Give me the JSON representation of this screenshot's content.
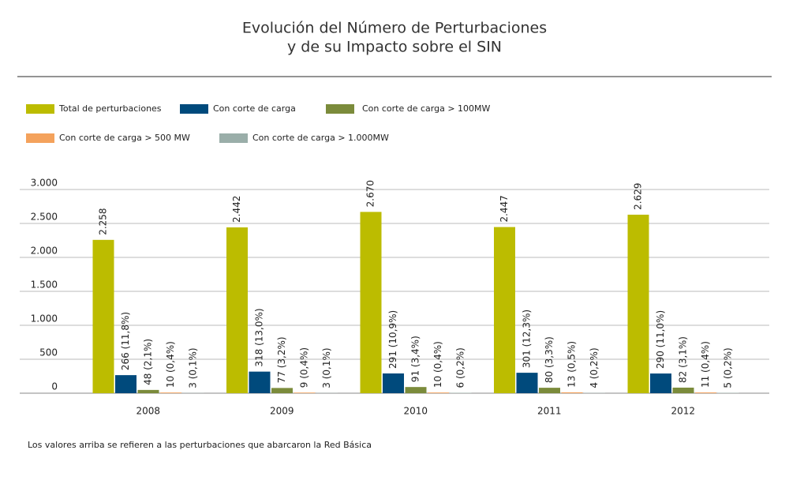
{
  "chart_data": {
    "type": "bar",
    "title": [
      "Evolución del Número de Perturbaciones",
      "y de su Impacto sobre el SIN"
    ],
    "categories": [
      "2008",
      "2009",
      "2010",
      "2011",
      "2012"
    ],
    "series": [
      {
        "name": "Total de perturbaciones",
        "color": "#bcbc00",
        "values": [
          2258,
          2442,
          2670,
          2447,
          2629
        ],
        "value_labels": [
          "2.258",
          "2.442",
          "2.670",
          "2.447",
          "2.629"
        ]
      },
      {
        "name": "Con corte de carga",
        "color": "#004a7c",
        "values": [
          266,
          318,
          291,
          301,
          290
        ],
        "value_labels": [
          "266 (11,8%)",
          "318 (13,0%)",
          "291 (10,9%)",
          "301 (12,3%)",
          "290 (11,0%)"
        ]
      },
      {
        "name": "Con corte de carga > 100MW",
        "color": "#7b8b3b",
        "values": [
          48,
          77,
          91,
          80,
          82
        ],
        "value_labels": [
          "48 (2,1%)",
          "77 (3,2%)",
          "91 (3,4%)",
          "80 (3,3%)",
          "82 (3,1%)"
        ]
      },
      {
        "name": "Con corte de carga > 500 MW",
        "color": "#f4a25c",
        "values": [
          10,
          9,
          10,
          13,
          11
        ],
        "value_labels": [
          "10 (0,4%)",
          "9 (0,4%)",
          "10 (0,4%)",
          "13 (0,5%)",
          "11 (0,4%)"
        ]
      },
      {
        "name": "Con corte de carga > 1.000MW",
        "color": "#9aaea9",
        "values": [
          3,
          3,
          6,
          4,
          5
        ],
        "value_labels": [
          "3 (0,1%)",
          "3 (0,1%)",
          "6 (0,2%)",
          "4 (0,2%)",
          "5 (0,2%)"
        ]
      }
    ],
    "ylim": [
      0,
      3000
    ],
    "yticks": [
      0,
      500,
      {
        "value": 1000,
        "label": "1.000"
      },
      {
        "value": 1500,
        "label": "1.500"
      },
      {
        "value": 2000,
        "label": "2.000"
      },
      {
        "value": 2500,
        "label": "2.500"
      },
      {
        "value": 3000,
        "label": "3.000"
      }
    ],
    "grid": true,
    "footnote": "Los valores arriba se refieren a las perturbaciones que abarcaron la Red Básica"
  }
}
